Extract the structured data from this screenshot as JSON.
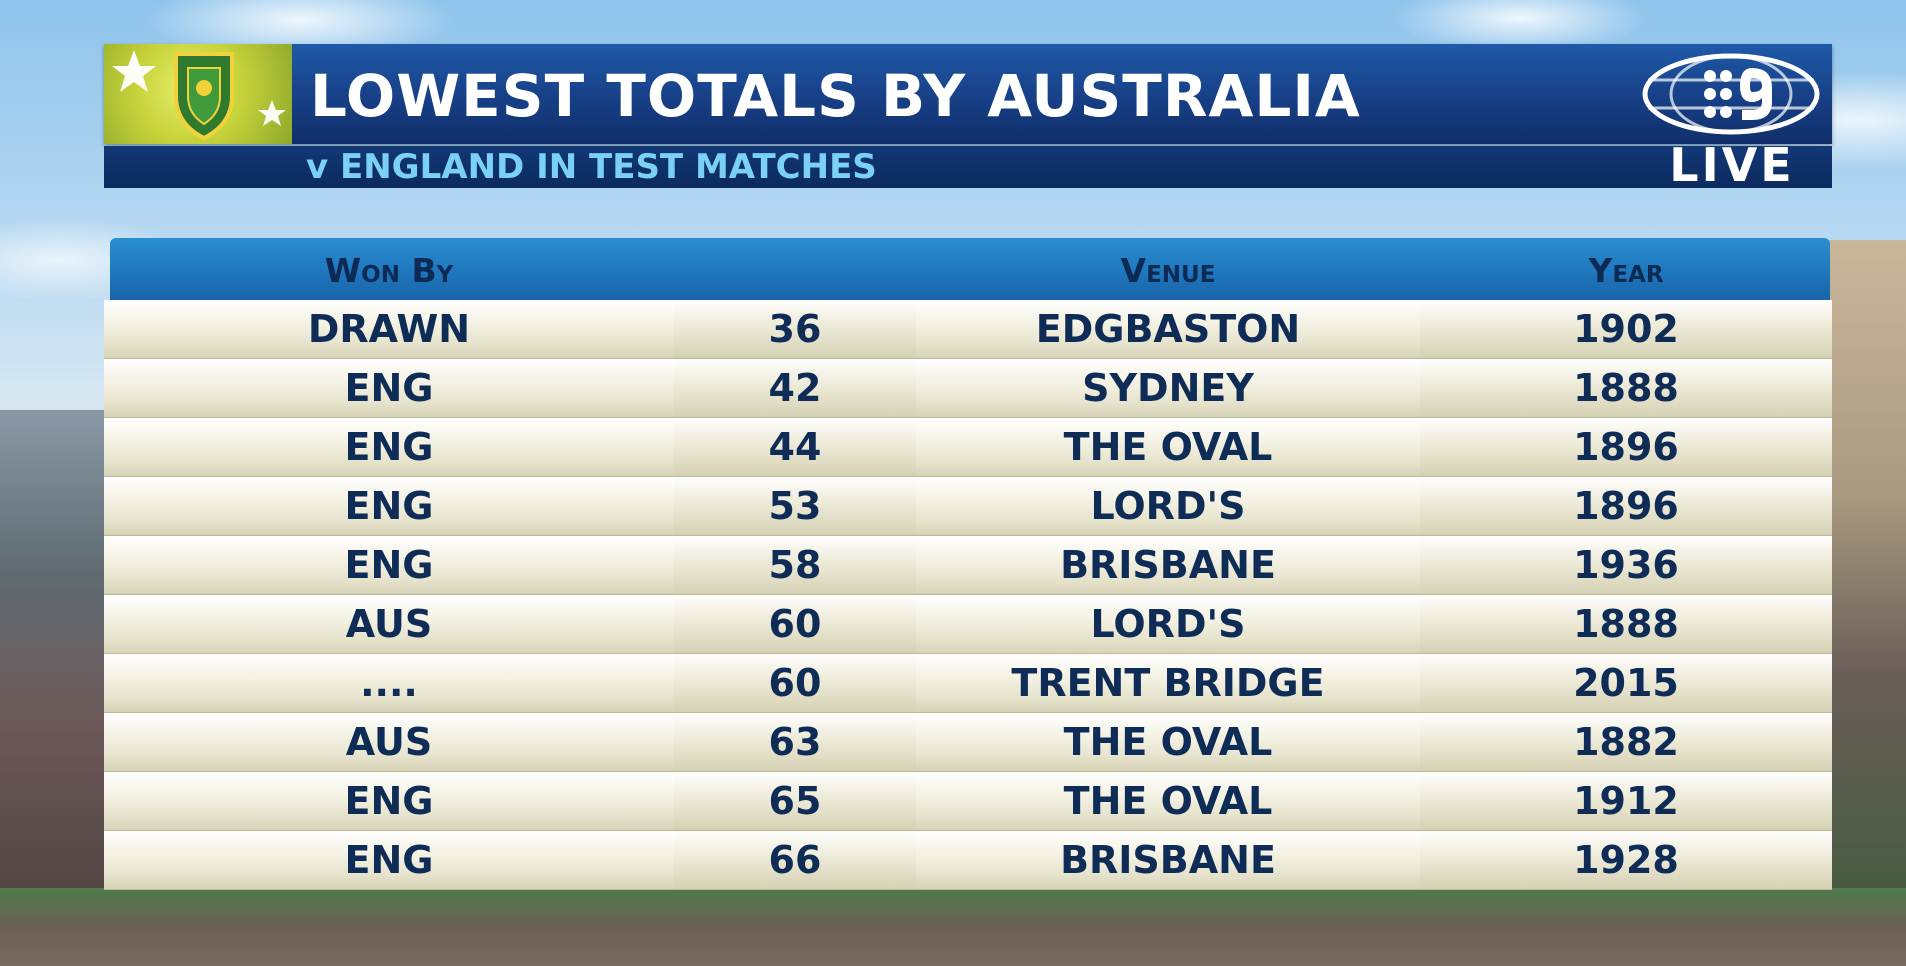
{
  "header": {
    "title": "LOWEST TOTALS BY AUSTRALIA",
    "subtitle": "v ENGLAND IN TEST MATCHES",
    "live_label": "LIVE",
    "logo_icon": "cricket-australia-crest-icon",
    "network_icon": "channel-nine-logo-icon"
  },
  "table": {
    "columns": [
      "Won By",
      "",
      "Venue",
      "Year"
    ],
    "rows": [
      {
        "won_by": "DRAWN",
        "total": "36",
        "venue": "EDGBASTON",
        "year": "1902"
      },
      {
        "won_by": "ENG",
        "total": "42",
        "venue": "SYDNEY",
        "year": "1888"
      },
      {
        "won_by": "ENG",
        "total": "44",
        "venue": "THE OVAL",
        "year": "1896"
      },
      {
        "won_by": "ENG",
        "total": "53",
        "venue": "LORD'S",
        "year": "1896"
      },
      {
        "won_by": "ENG",
        "total": "58",
        "venue": "BRISBANE",
        "year": "1936"
      },
      {
        "won_by": "AUS",
        "total": "60",
        "venue": "LORD'S",
        "year": "1888"
      },
      {
        "won_by": "....",
        "total": "60",
        "venue": "TRENT BRIDGE",
        "year": "2015"
      },
      {
        "won_by": "AUS",
        "total": "63",
        "venue": "THE OVAL",
        "year": "1882"
      },
      {
        "won_by": "ENG",
        "total": "65",
        "venue": "THE OVAL",
        "year": "1912"
      },
      {
        "won_by": "ENG",
        "total": "66",
        "venue": "BRISBANE",
        "year": "1928"
      }
    ]
  },
  "colors": {
    "header_blue": "#173f86",
    "subtitle_cyan": "#7ad0f5",
    "table_head_blue": "#1f77bd",
    "row_text_navy": "#0f2c57",
    "crest_green": "#c7d33a"
  }
}
